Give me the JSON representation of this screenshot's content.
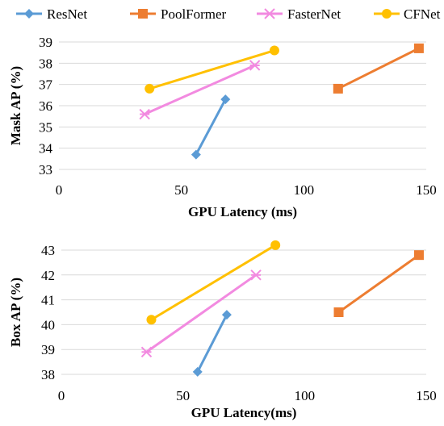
{
  "chart_data": [
    {
      "type": "line",
      "title": "",
      "xlabel": "GPU Latency (ms)",
      "ylabel": "Mask AP (%)",
      "xlim": [
        0,
        150
      ],
      "ylim": [
        33,
        39
      ],
      "x_ticks": [
        "0",
        "50",
        "100",
        "150"
      ],
      "y_ticks": [
        "33",
        "34",
        "35",
        "36",
        "37",
        "38",
        "39"
      ],
      "grid": "horizontal",
      "series": [
        {
          "name": "ResNet",
          "color": "#5B9BD5",
          "marker": "diamond",
          "points": [
            {
              "x": 56,
              "y": 33.7
            },
            {
              "x": 68,
              "y": 36.3
            }
          ]
        },
        {
          "name": "PoolFormer",
          "color": "#ED7D31",
          "marker": "square",
          "points": [
            {
              "x": 114,
              "y": 36.8
            },
            {
              "x": 147,
              "y": 38.7
            }
          ]
        },
        {
          "name": "FasterNet",
          "color": "#F28AE0",
          "marker": "star",
          "points": [
            {
              "x": 35,
              "y": 35.6
            },
            {
              "x": 80,
              "y": 37.9
            }
          ]
        },
        {
          "name": "CFNet",
          "color": "#FFC000",
          "marker": "circle",
          "points": [
            {
              "x": 37,
              "y": 36.8
            },
            {
              "x": 88,
              "y": 38.6
            }
          ]
        }
      ]
    },
    {
      "type": "line",
      "title": "",
      "xlabel": "GPU Latency(ms)",
      "ylabel": "Box AP (%)",
      "xlim": [
        0,
        150
      ],
      "ylim": [
        38,
        43
      ],
      "x_ticks": [
        "0",
        "50",
        "100",
        "150"
      ],
      "y_ticks": [
        "38",
        "39",
        "40",
        "41",
        "42",
        "43"
      ],
      "grid": "horizontal",
      "series": [
        {
          "name": "ResNet",
          "color": "#5B9BD5",
          "marker": "diamond",
          "points": [
            {
              "x": 56,
              "y": 38.1
            },
            {
              "x": 68,
              "y": 40.4
            }
          ]
        },
        {
          "name": "PoolFormer",
          "color": "#ED7D31",
          "marker": "square",
          "points": [
            {
              "x": 114,
              "y": 40.5
            },
            {
              "x": 147,
              "y": 42.8
            }
          ]
        },
        {
          "name": "FasterNet",
          "color": "#F28AE0",
          "marker": "star",
          "points": [
            {
              "x": 35,
              "y": 38.9
            },
            {
              "x": 80,
              "y": 42.0
            }
          ]
        },
        {
          "name": "CFNet",
          "color": "#FFC000",
          "marker": "circle",
          "points": [
            {
              "x": 37,
              "y": 40.2
            },
            {
              "x": 88,
              "y": 43.2
            }
          ]
        }
      ]
    }
  ],
  "legend": {
    "placement": "top",
    "items": [
      {
        "name": "ResNet",
        "color": "#5B9BD5",
        "marker": "diamond"
      },
      {
        "name": "PoolFormer",
        "color": "#ED7D31",
        "marker": "square"
      },
      {
        "name": "FasterNet",
        "color": "#F28AE0",
        "marker": "star"
      },
      {
        "name": "CFNet",
        "color": "#FFC000",
        "marker": "circle"
      }
    ]
  }
}
